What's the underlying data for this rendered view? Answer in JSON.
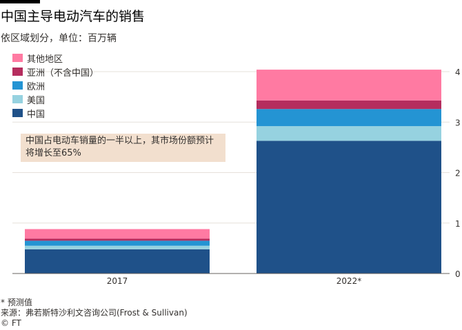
{
  "title": "中国主导电动汽车的销售",
  "subtitle": "依区域划分，单位：百万辆",
  "annotation": "中国占电动车销量的一半以上，其市场份额预计将增长至65%",
  "footer": {
    "note": "* 预测值",
    "source": "来源：弗若斯特沙利文咨询公司(Frost & Sullivan)",
    "credit": "© FT"
  },
  "chart_data": {
    "type": "bar",
    "stacked": true,
    "title": "中国主导电动汽车的销售",
    "ylabel": "百万辆",
    "categories": [
      "2017",
      "2022*"
    ],
    "ylim": [
      0,
      4
    ],
    "yticks": [
      0,
      1,
      2,
      3,
      4
    ],
    "legend_order": [
      "其他地区",
      "亚洲（不含中国）",
      "欧洲",
      "美国",
      "中国"
    ],
    "series": [
      {
        "name": "中国",
        "color": "#1f5189",
        "values": [
          0.48,
          2.63
        ]
      },
      {
        "name": "美国",
        "color": "#96d2e0",
        "values": [
          0.07,
          0.29
        ]
      },
      {
        "name": "欧洲",
        "color": "#2494d3",
        "values": [
          0.1,
          0.34
        ]
      },
      {
        "name": "亚洲（不含中国）",
        "color": "#b52d5e",
        "values": [
          0.04,
          0.17
        ]
      },
      {
        "name": "其他地区",
        "color": "#ff7aa2",
        "values": [
          0.19,
          0.61
        ]
      }
    ]
  }
}
